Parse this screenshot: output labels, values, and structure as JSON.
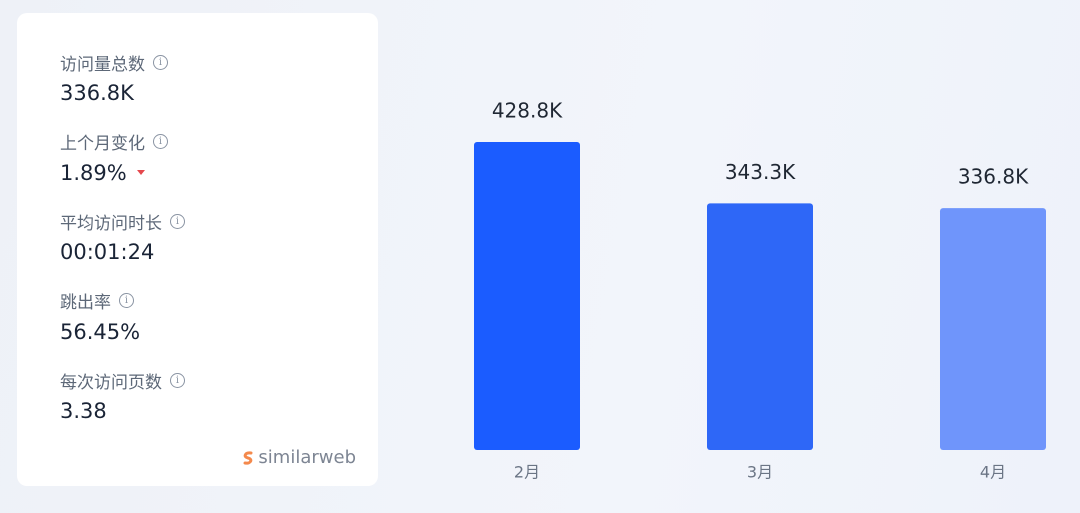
{
  "metrics": [
    {
      "label": "访问量总数",
      "value": "336.8K"
    },
    {
      "label": "上个月变化",
      "value": "1.89%"
    },
    {
      "label": "平均访问时长",
      "value": "00:01:24"
    },
    {
      "label": "跳出率",
      "value": "56.45%"
    },
    {
      "label": "每次访问页数",
      "value": "3.38"
    }
  ],
  "brand": "similarweb",
  "chart_data": {
    "type": "bar",
    "categories": [
      "2月",
      "3月",
      "4月"
    ],
    "values": [
      428.8,
      343.3,
      336.8
    ],
    "value_labels": [
      "428.8K",
      "343.3K",
      "336.8K"
    ],
    "colors": [
      "#1b5cff",
      "#2e67f7",
      "#6f95fb"
    ]
  }
}
